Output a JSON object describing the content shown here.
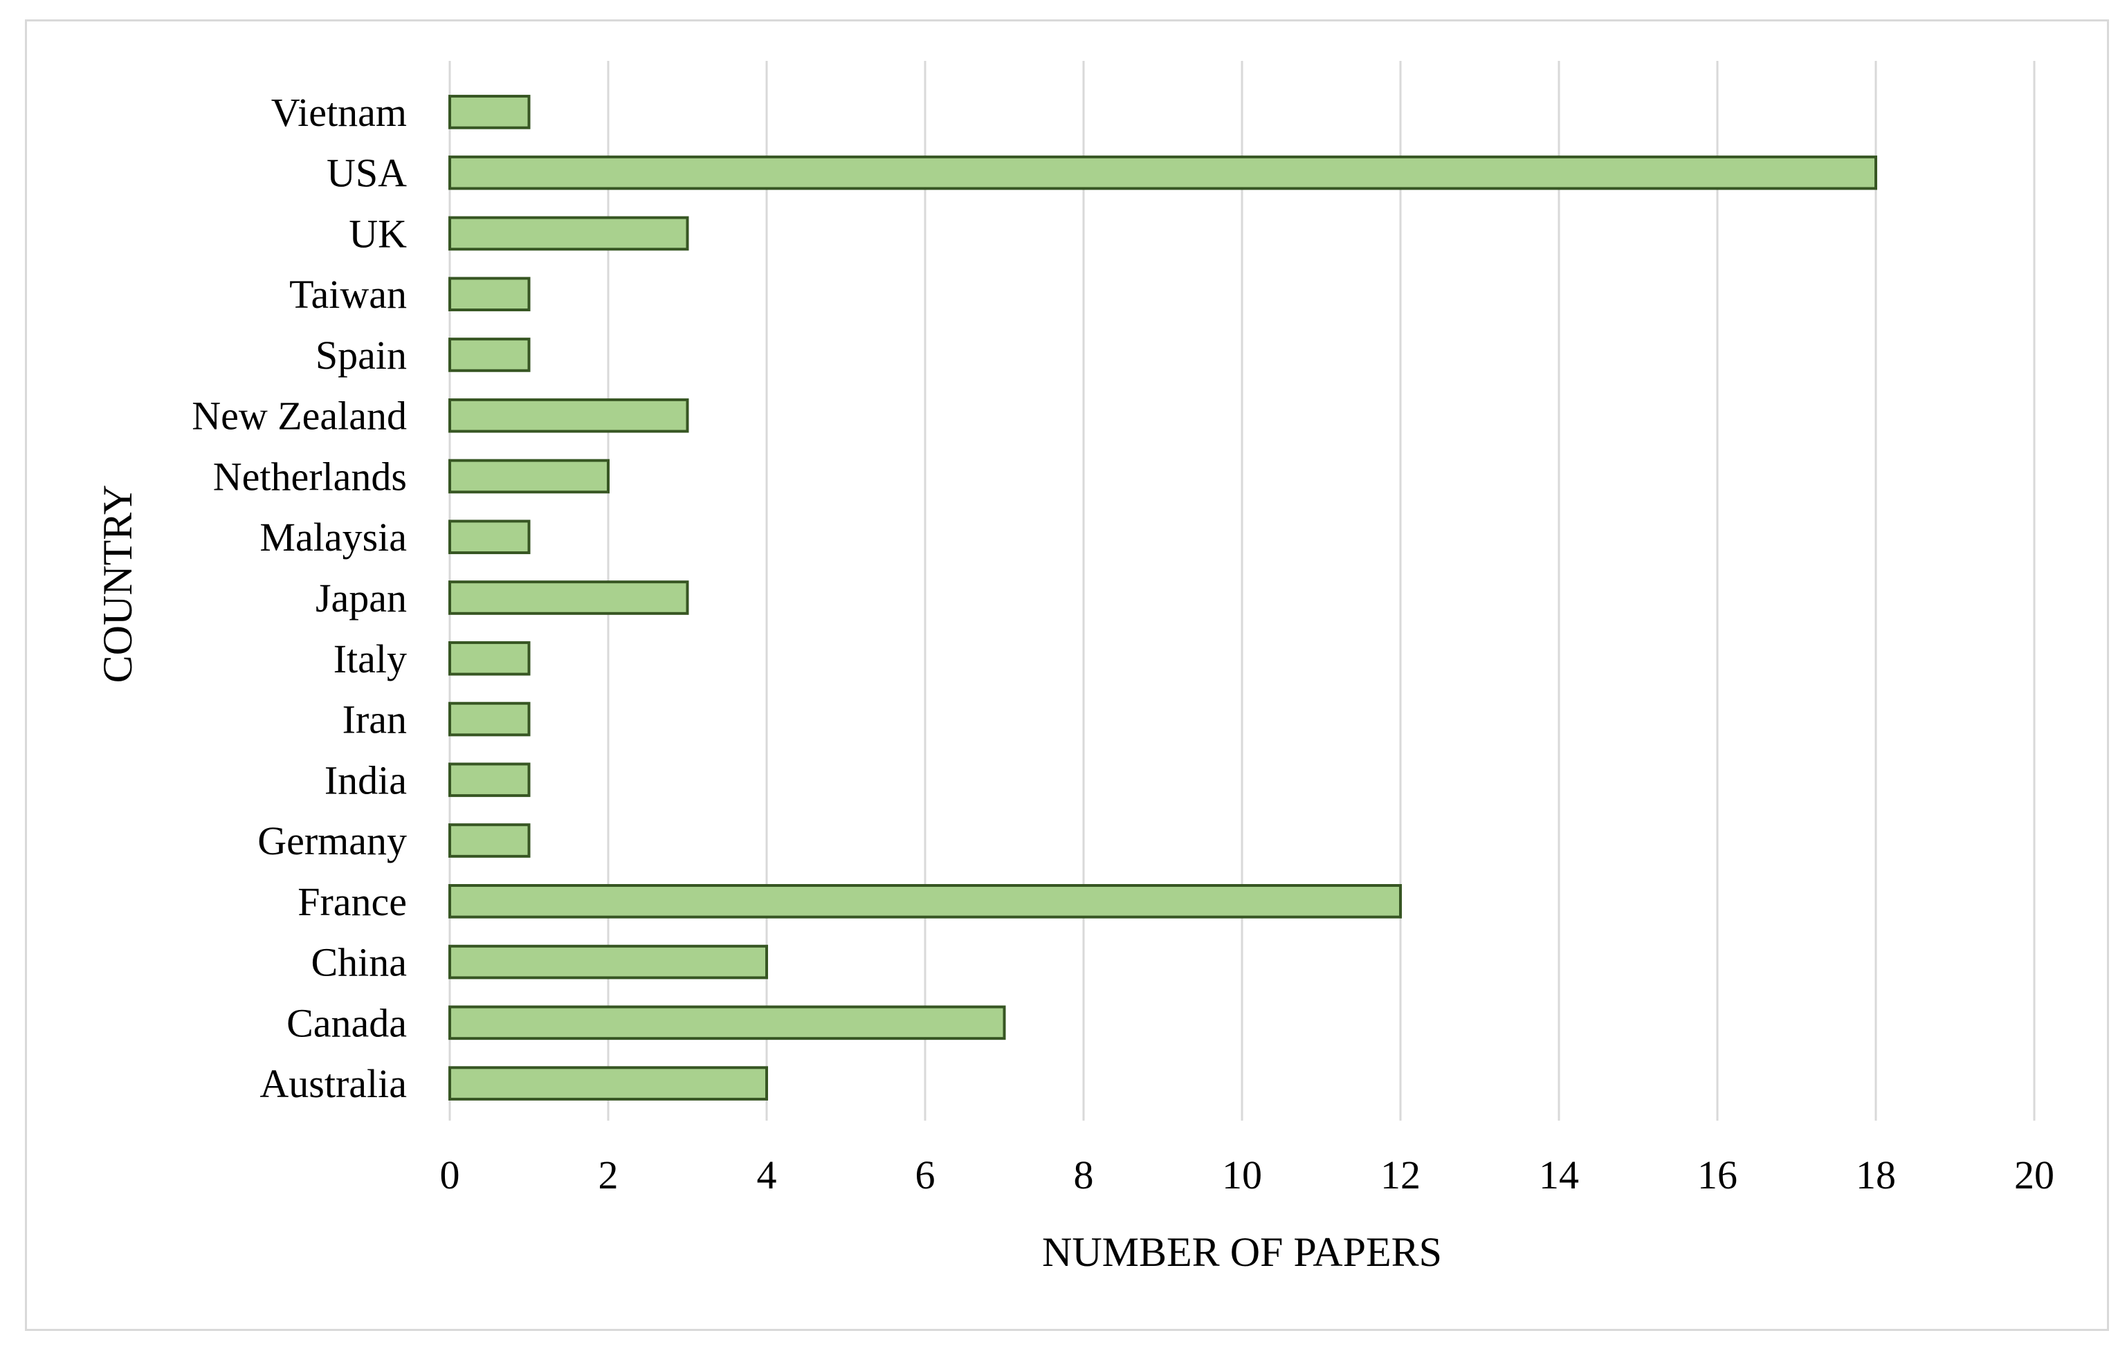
{
  "chart_data": {
    "type": "bar",
    "orientation": "horizontal",
    "categories": [
      "Australia",
      "Canada",
      "China",
      "France",
      "Germany",
      "India",
      "Iran",
      "Italy",
      "Japan",
      "Malaysia",
      "Netherlands",
      "New Zealand",
      "Spain",
      "Taiwan",
      "UK",
      "USA",
      "Vietnam"
    ],
    "values": [
      4,
      7,
      4,
      12,
      1,
      1,
      1,
      1,
      3,
      1,
      2,
      3,
      1,
      1,
      3,
      18,
      1
    ],
    "title": "",
    "xlabel": "NUMBER OF PAPERS",
    "ylabel": "COUNTRY",
    "xlim": [
      0,
      20
    ],
    "xticks": [
      0,
      2,
      4,
      6,
      8,
      10,
      12,
      14,
      16,
      18,
      20
    ],
    "grid": "vertical",
    "legend": "none",
    "colors": {
      "bar_fill": "#a9d18e",
      "bar_stroke": "#375623",
      "grid": "#d9d9d9",
      "frame": "#d9d9d9"
    }
  }
}
